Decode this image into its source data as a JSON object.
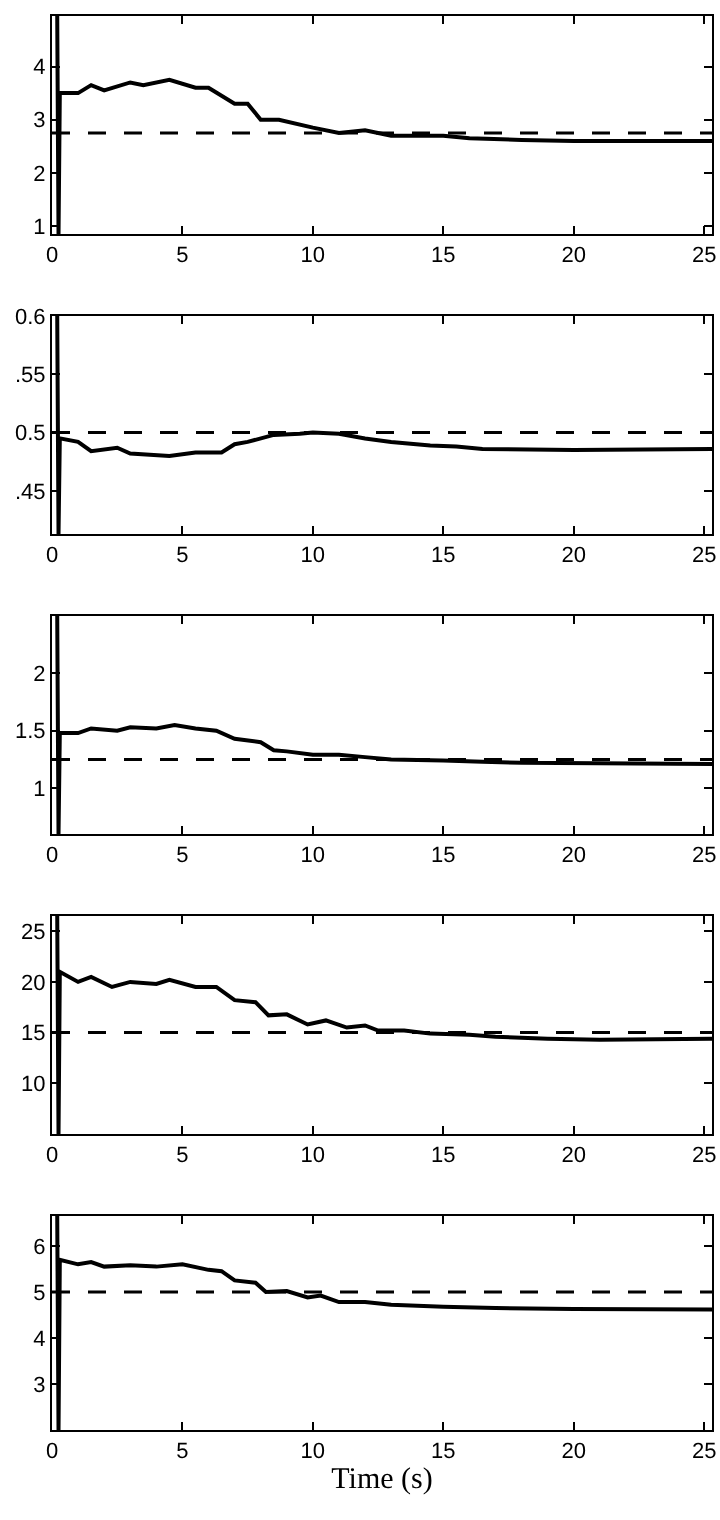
{
  "chart_data": [
    {
      "type": "line",
      "x": [
        0.2,
        0.25,
        0.3,
        1,
        1.5,
        2,
        3,
        3.5,
        4.5,
        5.5,
        6,
        7,
        7.5,
        8,
        8.7,
        10,
        11,
        12,
        13,
        15,
        16,
        18,
        20,
        25.3
      ],
      "series": [
        {
          "color": "#000000",
          "values": [
            4.95,
            0.85,
            3.5,
            3.5,
            3.65,
            3.55,
            3.7,
            3.65,
            3.75,
            3.6,
            3.6,
            3.3,
            3.3,
            3.0,
            3.0,
            2.85,
            2.75,
            2.8,
            2.7,
            2.7,
            2.65,
            2.62,
            2.6,
            2.6
          ]
        }
      ],
      "xlim": [
        0,
        25.3
      ],
      "xticks": [
        0,
        5,
        10,
        15,
        20,
        25
      ],
      "ylim": [
        0.85,
        4.95
      ],
      "yticks": [
        1,
        2,
        3,
        4
      ],
      "ref_lines": [
        {
          "axis": "y",
          "value": 2.75,
          "color": "#000000",
          "line_style": "dashed"
        }
      ],
      "grid": false,
      "line_style": "solid"
    },
    {
      "type": "line",
      "x": [
        0.2,
        0.25,
        0.3,
        1,
        1.5,
        2.5,
        3,
        4.5,
        5.5,
        6.5,
        7,
        7.5,
        8.5,
        9.5,
        10,
        11,
        12,
        13,
        14.5,
        15.5,
        16.5,
        20,
        25.3
      ],
      "series": [
        {
          "color": "#000000",
          "values": [
            0.6,
            0.413,
            0.495,
            0.492,
            0.484,
            0.487,
            0.482,
            0.48,
            0.483,
            0.483,
            0.49,
            0.492,
            0.498,
            0.499,
            0.5,
            0.499,
            0.495,
            0.492,
            0.489,
            0.488,
            0.486,
            0.485,
            0.486
          ]
        }
      ],
      "xlim": [
        0,
        25.3
      ],
      "xticks": [
        0,
        5,
        10,
        15,
        20,
        25
      ],
      "ylim": [
        0.413,
        0.6
      ],
      "yticks": [
        {
          "value": 0.45,
          "label": ".45"
        },
        0.5,
        {
          "value": 0.55,
          "label": ".55"
        },
        0.6
      ],
      "ref_lines": [
        {
          "axis": "y",
          "value": 0.5,
          "color": "#000000",
          "line_style": "dashed"
        }
      ],
      "grid": false,
      "line_style": "solid"
    },
    {
      "type": "line",
      "x": [
        0.2,
        0.25,
        0.3,
        1,
        1.5,
        2.5,
        3,
        4,
        4.7,
        5.5,
        6.3,
        7,
        8,
        8.5,
        9,
        10,
        11,
        12,
        13,
        15,
        16.5,
        18,
        25.3
      ],
      "series": [
        {
          "color": "#000000",
          "values": [
            2.5,
            0.6,
            1.48,
            1.48,
            1.52,
            1.5,
            1.53,
            1.52,
            1.55,
            1.52,
            1.5,
            1.43,
            1.4,
            1.33,
            1.32,
            1.29,
            1.29,
            1.27,
            1.25,
            1.24,
            1.23,
            1.22,
            1.21
          ]
        }
      ],
      "xlim": [
        0,
        25.3
      ],
      "xticks": [
        0,
        5,
        10,
        15,
        20,
        25
      ],
      "ylim": [
        0.6,
        2.5
      ],
      "yticks": [
        1,
        1.5,
        2
      ],
      "ref_lines": [
        {
          "axis": "y",
          "value": 1.25,
          "color": "#000000",
          "line_style": "dashed"
        }
      ],
      "grid": false,
      "line_style": "solid"
    },
    {
      "type": "line",
      "x": [
        0.2,
        0.25,
        0.3,
        1,
        1.5,
        2.3,
        3,
        4,
        4.5,
        5.5,
        6.3,
        7,
        7.8,
        8.3,
        9,
        9.8,
        10.5,
        11.3,
        12,
        12.5,
        13.5,
        14.5,
        16,
        17,
        19,
        21,
        25.3
      ],
      "series": [
        {
          "color": "#000000",
          "values": [
            26.5,
            5,
            21,
            20,
            20.5,
            19.5,
            20,
            19.8,
            20.2,
            19.5,
            19.5,
            18.2,
            18,
            16.7,
            16.8,
            15.8,
            16.2,
            15.5,
            15.7,
            15.2,
            15.2,
            14.9,
            14.8,
            14.6,
            14.4,
            14.3,
            14.4
          ]
        }
      ],
      "xlim": [
        0,
        25.3
      ],
      "xticks": [
        0,
        5,
        10,
        15,
        20,
        25
      ],
      "ylim": [
        5,
        26.5
      ],
      "yticks": [
        10,
        15,
        20,
        25
      ],
      "ref_lines": [
        {
          "axis": "y",
          "value": 15,
          "color": "#000000",
          "line_style": "dashed"
        }
      ],
      "grid": false,
      "line_style": "solid"
    },
    {
      "type": "line",
      "x": [
        0.2,
        0.25,
        0.3,
        1,
        1.5,
        2,
        3,
        4,
        5,
        6,
        6.5,
        7,
        7.8,
        8.2,
        9,
        9.8,
        10.3,
        11,
        12,
        13,
        15,
        17,
        20,
        25.3
      ],
      "series": [
        {
          "color": "#000000",
          "values": [
            6.65,
            2,
            5.7,
            5.6,
            5.65,
            5.55,
            5.58,
            5.55,
            5.6,
            5.48,
            5.45,
            5.25,
            5.2,
            5.0,
            5.02,
            4.88,
            4.92,
            4.78,
            4.78,
            4.72,
            4.68,
            4.65,
            4.63,
            4.62
          ]
        }
      ],
      "xlim": [
        0,
        25.3
      ],
      "xticks": [
        0,
        5,
        10,
        15,
        20,
        25
      ],
      "ylim": [
        2,
        6.65
      ],
      "yticks": [
        3,
        4,
        5,
        6
      ],
      "xlabel": "Time (s)",
      "ref_lines": [
        {
          "axis": "y",
          "value": 5,
          "color": "#000000",
          "line_style": "dashed"
        }
      ],
      "grid": false,
      "line_style": "solid"
    }
  ]
}
